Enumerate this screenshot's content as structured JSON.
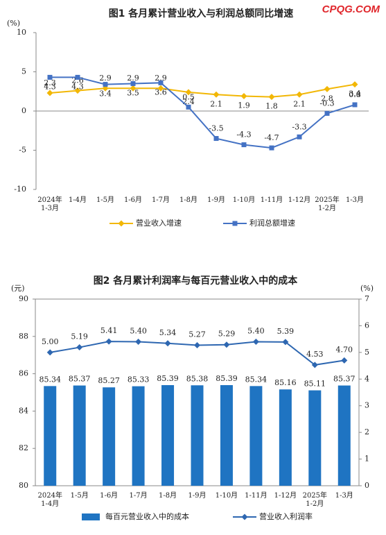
{
  "watermark": "CPQG.COM",
  "chart_data": [
    {
      "type": "line",
      "title": "图1  各月累计营业收入与利润总额同比增速",
      "ylabel": "(%)",
      "categories": [
        "2024年\n1-3月",
        "1-4月",
        "1-5月",
        "1-6月",
        "1-7月",
        "1-8月",
        "1-9月",
        "1-10月",
        "1-11月",
        "1-12月",
        "2025年\n1-2月",
        "1-3月"
      ],
      "ylim": [
        -10,
        10
      ],
      "yticks": [
        -10,
        -5,
        0,
        5,
        10
      ],
      "legend": "bottom",
      "series": [
        {
          "name": "营业收入增速",
          "color": "#f2b705",
          "marker": "diamond",
          "values": [
            2.3,
            2.6,
            2.9,
            2.9,
            2.9,
            2.4,
            2.1,
            1.9,
            1.8,
            2.1,
            2.8,
            3.4
          ]
        },
        {
          "name": "利润总额增速",
          "color": "#4472c4",
          "marker": "square",
          "values": [
            4.3,
            4.3,
            3.4,
            3.5,
            3.6,
            0.5,
            -3.5,
            -4.3,
            -4.7,
            -3.3,
            -0.3,
            0.8
          ]
        }
      ]
    },
    {
      "type": "bar-line",
      "title": "图2  各月累计利润率与每百元营业收入中的成本",
      "ylabel": "(元)",
      "y2label": "(%)",
      "categories": [
        "2024年\n1-4月",
        "1-5月",
        "1-6月",
        "1-7月",
        "1-8月",
        "1-9月",
        "1-10月",
        "1-11月",
        "1-12月",
        "2025年\n1-2月",
        "1-3月"
      ],
      "ylim": [
        80,
        90
      ],
      "yticks": [
        80,
        82,
        84,
        86,
        88,
        90
      ],
      "y2lim": [
        0,
        7
      ],
      "y2ticks": [
        0,
        1,
        2,
        3,
        4,
        5,
        6,
        7
      ],
      "legend": "bottom",
      "series": [
        {
          "name": "每百元营业收入中的成本",
          "color": "#1f74c2",
          "kind": "bar",
          "values": [
            85.34,
            85.37,
            85.27,
            85.33,
            85.39,
            85.38,
            85.39,
            85.34,
            85.16,
            85.11,
            85.37
          ]
        },
        {
          "name": "营业收入利润率",
          "color": "#2e67b1",
          "kind": "line",
          "marker": "diamond",
          "axis": "y2",
          "values": [
            5.0,
            5.19,
            5.41,
            5.4,
            5.34,
            5.27,
            5.29,
            5.4,
            5.39,
            4.53,
            4.7
          ],
          "value_labels": [
            "5.00",
            "5.19",
            "5.41",
            "5.40",
            "5.34",
            "5.27",
            "5.29",
            "5.40",
            "5.39",
            "4.53",
            "4.70"
          ]
        }
      ]
    }
  ]
}
